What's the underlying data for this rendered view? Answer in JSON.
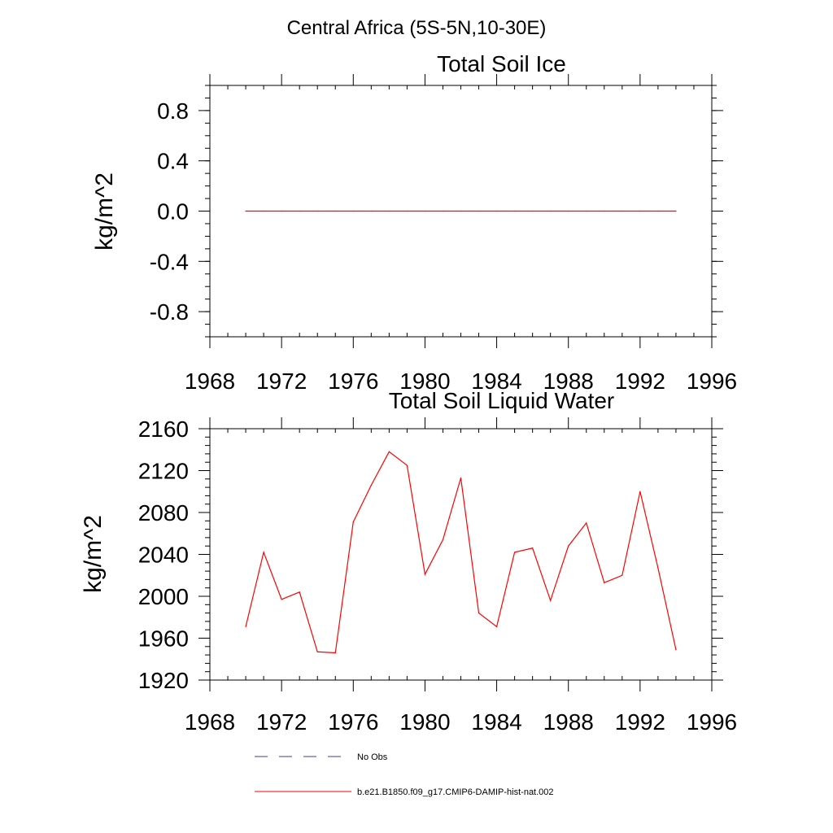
{
  "page_title": "Central Africa (5S-5N,10-30E)",
  "colors": {
    "model_line": "#ff0000",
    "obs_line": "#3c3c8c",
    "axis": "#000000"
  },
  "legend": {
    "position": "bottom",
    "entries": [
      {
        "label": "No Obs",
        "style": "dashed",
        "color": "#3c3c8c"
      },
      {
        "label": "b.e21.B1850.f09_g17.CMIP6-DAMIP-hist-nat.002",
        "style": "solid",
        "color": "#ff0000"
      }
    ]
  },
  "chart_data": [
    {
      "type": "line",
      "title": "Total Soil Ice",
      "xlabel": "",
      "ylabel": "kg/m^2",
      "xlim": [
        1968,
        1996
      ],
      "ylim": [
        -1.0,
        1.0
      ],
      "x_ticks": [
        "1968",
        "1972",
        "1976",
        "1980",
        "1984",
        "1988",
        "1992",
        "1996"
      ],
      "y_ticks": [
        "0.8",
        "0.4",
        "0.0",
        "-0.4",
        "-0.8"
      ],
      "y_tick_values": [
        0.8,
        0.4,
        0.0,
        -0.4,
        -0.8
      ],
      "grid": false,
      "x": [
        1970,
        1971,
        1972,
        1973,
        1974,
        1975,
        1976,
        1977,
        1978,
        1979,
        1980,
        1981,
        1982,
        1983,
        1984,
        1985,
        1986,
        1987,
        1988,
        1989,
        1990,
        1991,
        1992,
        1993,
        1994
      ],
      "series": [
        {
          "color": "#ff0000",
          "values": [
            0,
            0,
            0,
            0,
            0,
            0,
            0,
            0,
            0,
            0,
            0,
            0,
            0,
            0,
            0,
            0,
            0,
            0,
            0,
            0,
            0,
            0,
            0,
            0,
            0
          ]
        }
      ]
    },
    {
      "type": "line",
      "title": "Total Soil Liquid Water",
      "xlabel": "",
      "ylabel": "kg/m^2",
      "xlim": [
        1968,
        1996
      ],
      "ylim": [
        1920,
        2160
      ],
      "x_ticks": [
        "1968",
        "1972",
        "1976",
        "1980",
        "1984",
        "1988",
        "1992",
        "1996"
      ],
      "y_ticks": [
        "2160",
        "2120",
        "2080",
        "2040",
        "2000",
        "1960",
        "1920"
      ],
      "y_tick_values": [
        2160,
        2120,
        2080,
        2040,
        2000,
        1960,
        1920
      ],
      "grid": false,
      "x": [
        1970,
        1971,
        1972,
        1973,
        1974,
        1975,
        1976,
        1977,
        1978,
        1979,
        1980,
        1981,
        1982,
        1983,
        1984,
        1985,
        1986,
        1987,
        1988,
        1989,
        1990,
        1991,
        1992,
        1993,
        1994
      ],
      "series": [
        {
          "color": "#ff0000",
          "values": [
            1971,
            2042,
            1997,
            2004,
            1947,
            1946,
            2071,
            2106,
            2138,
            2125,
            2021,
            2054,
            2113,
            1984,
            1971,
            2042,
            2046,
            1996,
            2048,
            2070,
            2013,
            2020,
            2100,
            2027,
            1949
          ]
        }
      ]
    }
  ]
}
